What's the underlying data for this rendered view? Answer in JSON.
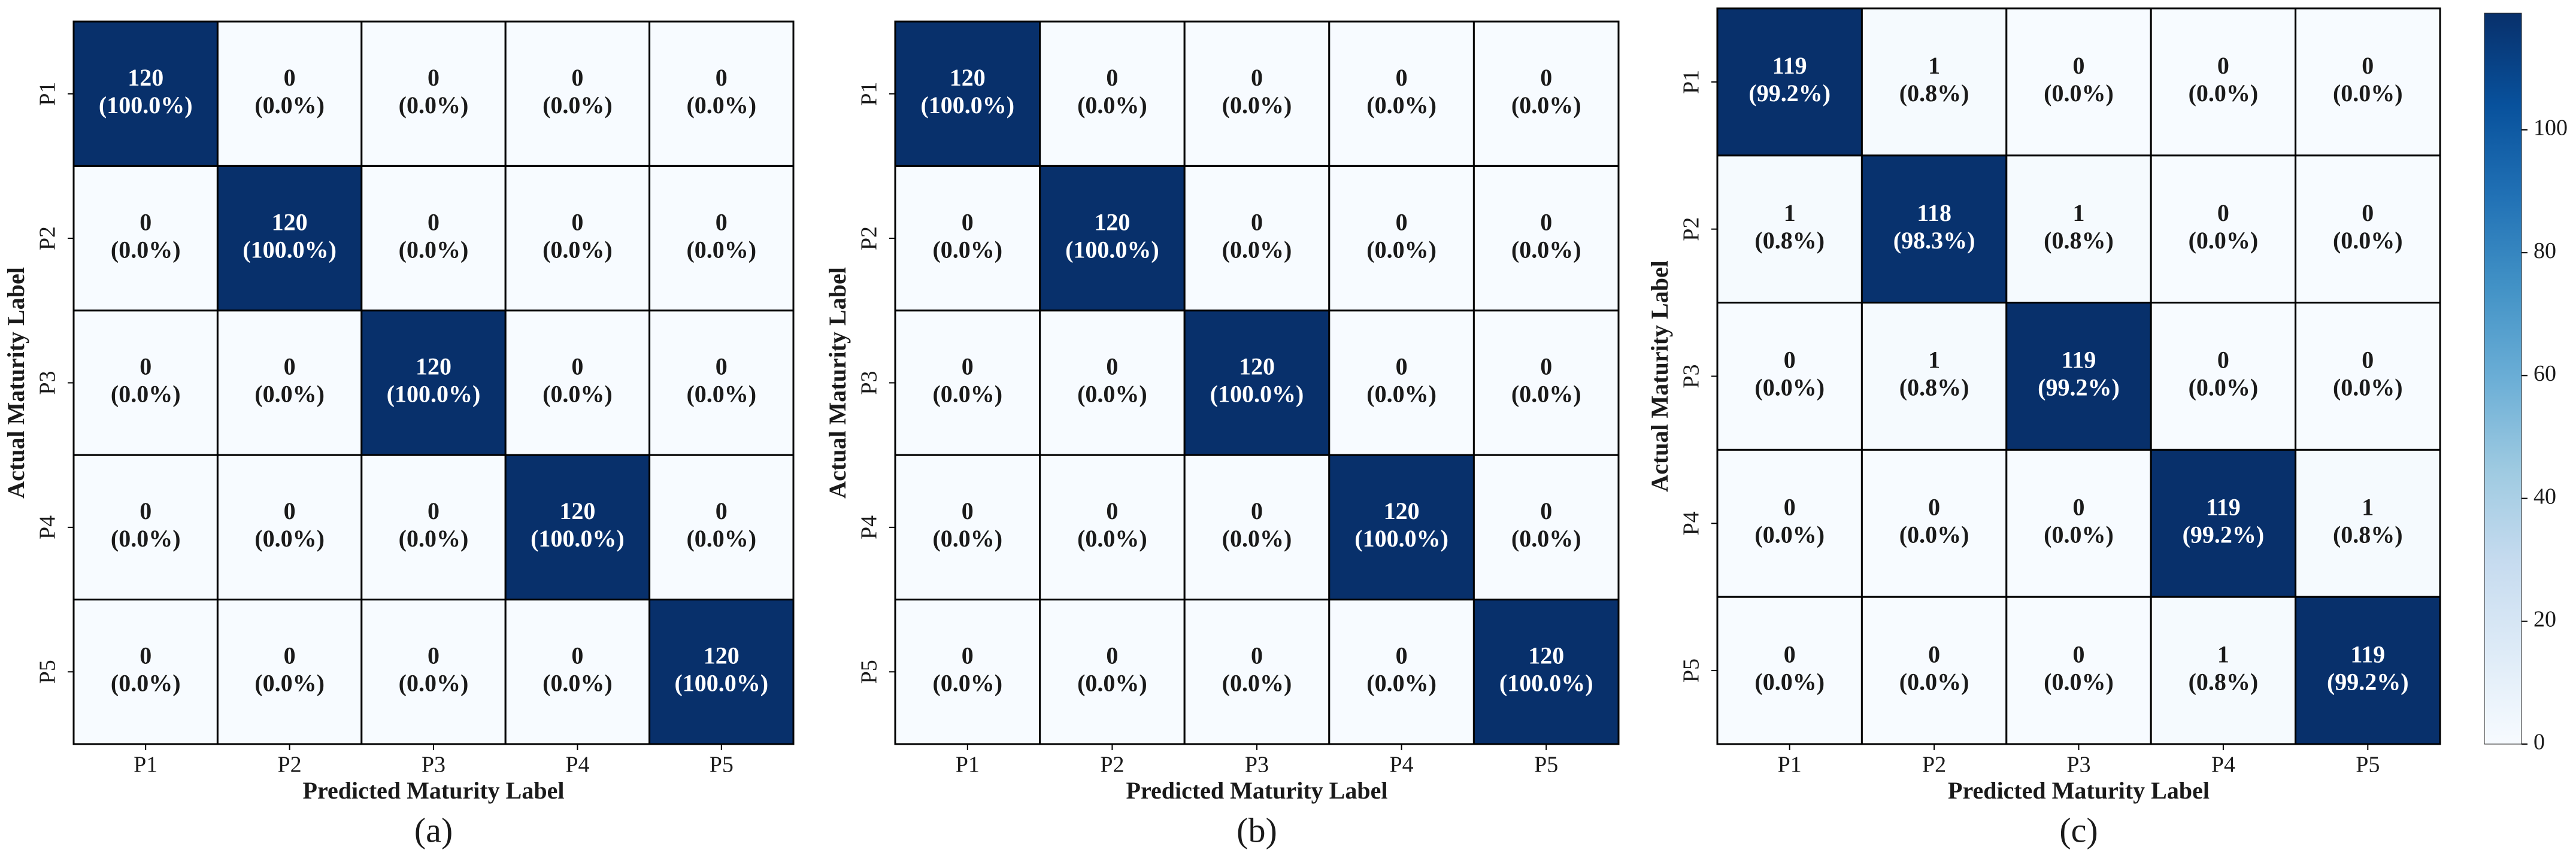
{
  "chart_data": [
    {
      "type": "heatmap",
      "caption": "(a)",
      "x_label": "Predicted Maturity Label",
      "y_label": "Actual Maturity Label",
      "x_categories": [
        "P1",
        "P2",
        "P3",
        "P4",
        "P5"
      ],
      "y_categories": [
        "P1",
        "P2",
        "P3",
        "P4",
        "P5"
      ],
      "values": [
        [
          120,
          0,
          0,
          0,
          0
        ],
        [
          0,
          120,
          0,
          0,
          0
        ],
        [
          0,
          0,
          120,
          0,
          0
        ],
        [
          0,
          0,
          0,
          120,
          0
        ],
        [
          0,
          0,
          0,
          0,
          120
        ]
      ],
      "percent_labels": [
        [
          "(100.0%)",
          "(0.0%)",
          "(0.0%)",
          "(0.0%)",
          "(0.0%)"
        ],
        [
          "(0.0%)",
          "(100.0%)",
          "(0.0%)",
          "(0.0%)",
          "(0.0%)"
        ],
        [
          "(0.0%)",
          "(0.0%)",
          "(100.0%)",
          "(0.0%)",
          "(0.0%)"
        ],
        [
          "(0.0%)",
          "(0.0%)",
          "(0.0%)",
          "(100.0%)",
          "(0.0%)"
        ],
        [
          "(0.0%)",
          "(0.0%)",
          "(0.0%)",
          "(0.0%)",
          "(100.0%)"
        ]
      ],
      "zlim": [
        0,
        120
      ],
      "colormap": [
        "#f7fbff",
        "#deebf7",
        "#c6dbef",
        "#9ecae1",
        "#6baed6",
        "#4292c6",
        "#2171b5",
        "#08519c",
        "#08306b"
      ]
    },
    {
      "type": "heatmap",
      "caption": "(b)",
      "x_label": "Predicted Maturity Label",
      "y_label": "Actual Maturity Label",
      "x_categories": [
        "P1",
        "P2",
        "P3",
        "P4",
        "P5"
      ],
      "y_categories": [
        "P1",
        "P2",
        "P3",
        "P4",
        "P5"
      ],
      "values": [
        [
          120,
          0,
          0,
          0,
          0
        ],
        [
          0,
          120,
          0,
          0,
          0
        ],
        [
          0,
          0,
          120,
          0,
          0
        ],
        [
          0,
          0,
          0,
          120,
          0
        ],
        [
          0,
          0,
          0,
          0,
          120
        ]
      ],
      "percent_labels": [
        [
          "(100.0%)",
          "(0.0%)",
          "(0.0%)",
          "(0.0%)",
          "(0.0%)"
        ],
        [
          "(0.0%)",
          "(100.0%)",
          "(0.0%)",
          "(0.0%)",
          "(0.0%)"
        ],
        [
          "(0.0%)",
          "(0.0%)",
          "(100.0%)",
          "(0.0%)",
          "(0.0%)"
        ],
        [
          "(0.0%)",
          "(0.0%)",
          "(0.0%)",
          "(100.0%)",
          "(0.0%)"
        ],
        [
          "(0.0%)",
          "(0.0%)",
          "(0.0%)",
          "(0.0%)",
          "(100.0%)"
        ]
      ],
      "zlim": [
        0,
        120
      ],
      "colormap": [
        "#f7fbff",
        "#deebf7",
        "#c6dbef",
        "#9ecae1",
        "#6baed6",
        "#4292c6",
        "#2171b5",
        "#08519c",
        "#08306b"
      ]
    },
    {
      "type": "heatmap",
      "caption": "(c)",
      "x_label": "Predicted Maturity Label",
      "y_label": "Actual Maturity Label",
      "x_categories": [
        "P1",
        "P2",
        "P3",
        "P4",
        "P5"
      ],
      "y_categories": [
        "P1",
        "P2",
        "P3",
        "P4",
        "P5"
      ],
      "values": [
        [
          119,
          1,
          0,
          0,
          0
        ],
        [
          1,
          118,
          1,
          0,
          0
        ],
        [
          0,
          1,
          119,
          0,
          0
        ],
        [
          0,
          0,
          0,
          119,
          1
        ],
        [
          0,
          0,
          0,
          1,
          119
        ]
      ],
      "percent_labels": [
        [
          "(99.2%)",
          "(0.8%)",
          "(0.0%)",
          "(0.0%)",
          "(0.0%)"
        ],
        [
          "(0.8%)",
          "(98.3%)",
          "(0.8%)",
          "(0.0%)",
          "(0.0%)"
        ],
        [
          "(0.0%)",
          "(0.8%)",
          "(99.2%)",
          "(0.0%)",
          "(0.0%)"
        ],
        [
          "(0.0%)",
          "(0.0%)",
          "(0.0%)",
          "(99.2%)",
          "(0.8%)"
        ],
        [
          "(0.0%)",
          "(0.0%)",
          "(0.0%)",
          "(0.8%)",
          "(99.2%)"
        ]
      ],
      "zlim": [
        0,
        119
      ],
      "colorbar": true,
      "colorbar_ticks": [
        0,
        20,
        40,
        60,
        80,
        100
      ],
      "colormap": [
        "#f7fbff",
        "#deebf7",
        "#c6dbef",
        "#9ecae1",
        "#6baed6",
        "#4292c6",
        "#2171b5",
        "#08519c",
        "#08306b"
      ]
    }
  ]
}
